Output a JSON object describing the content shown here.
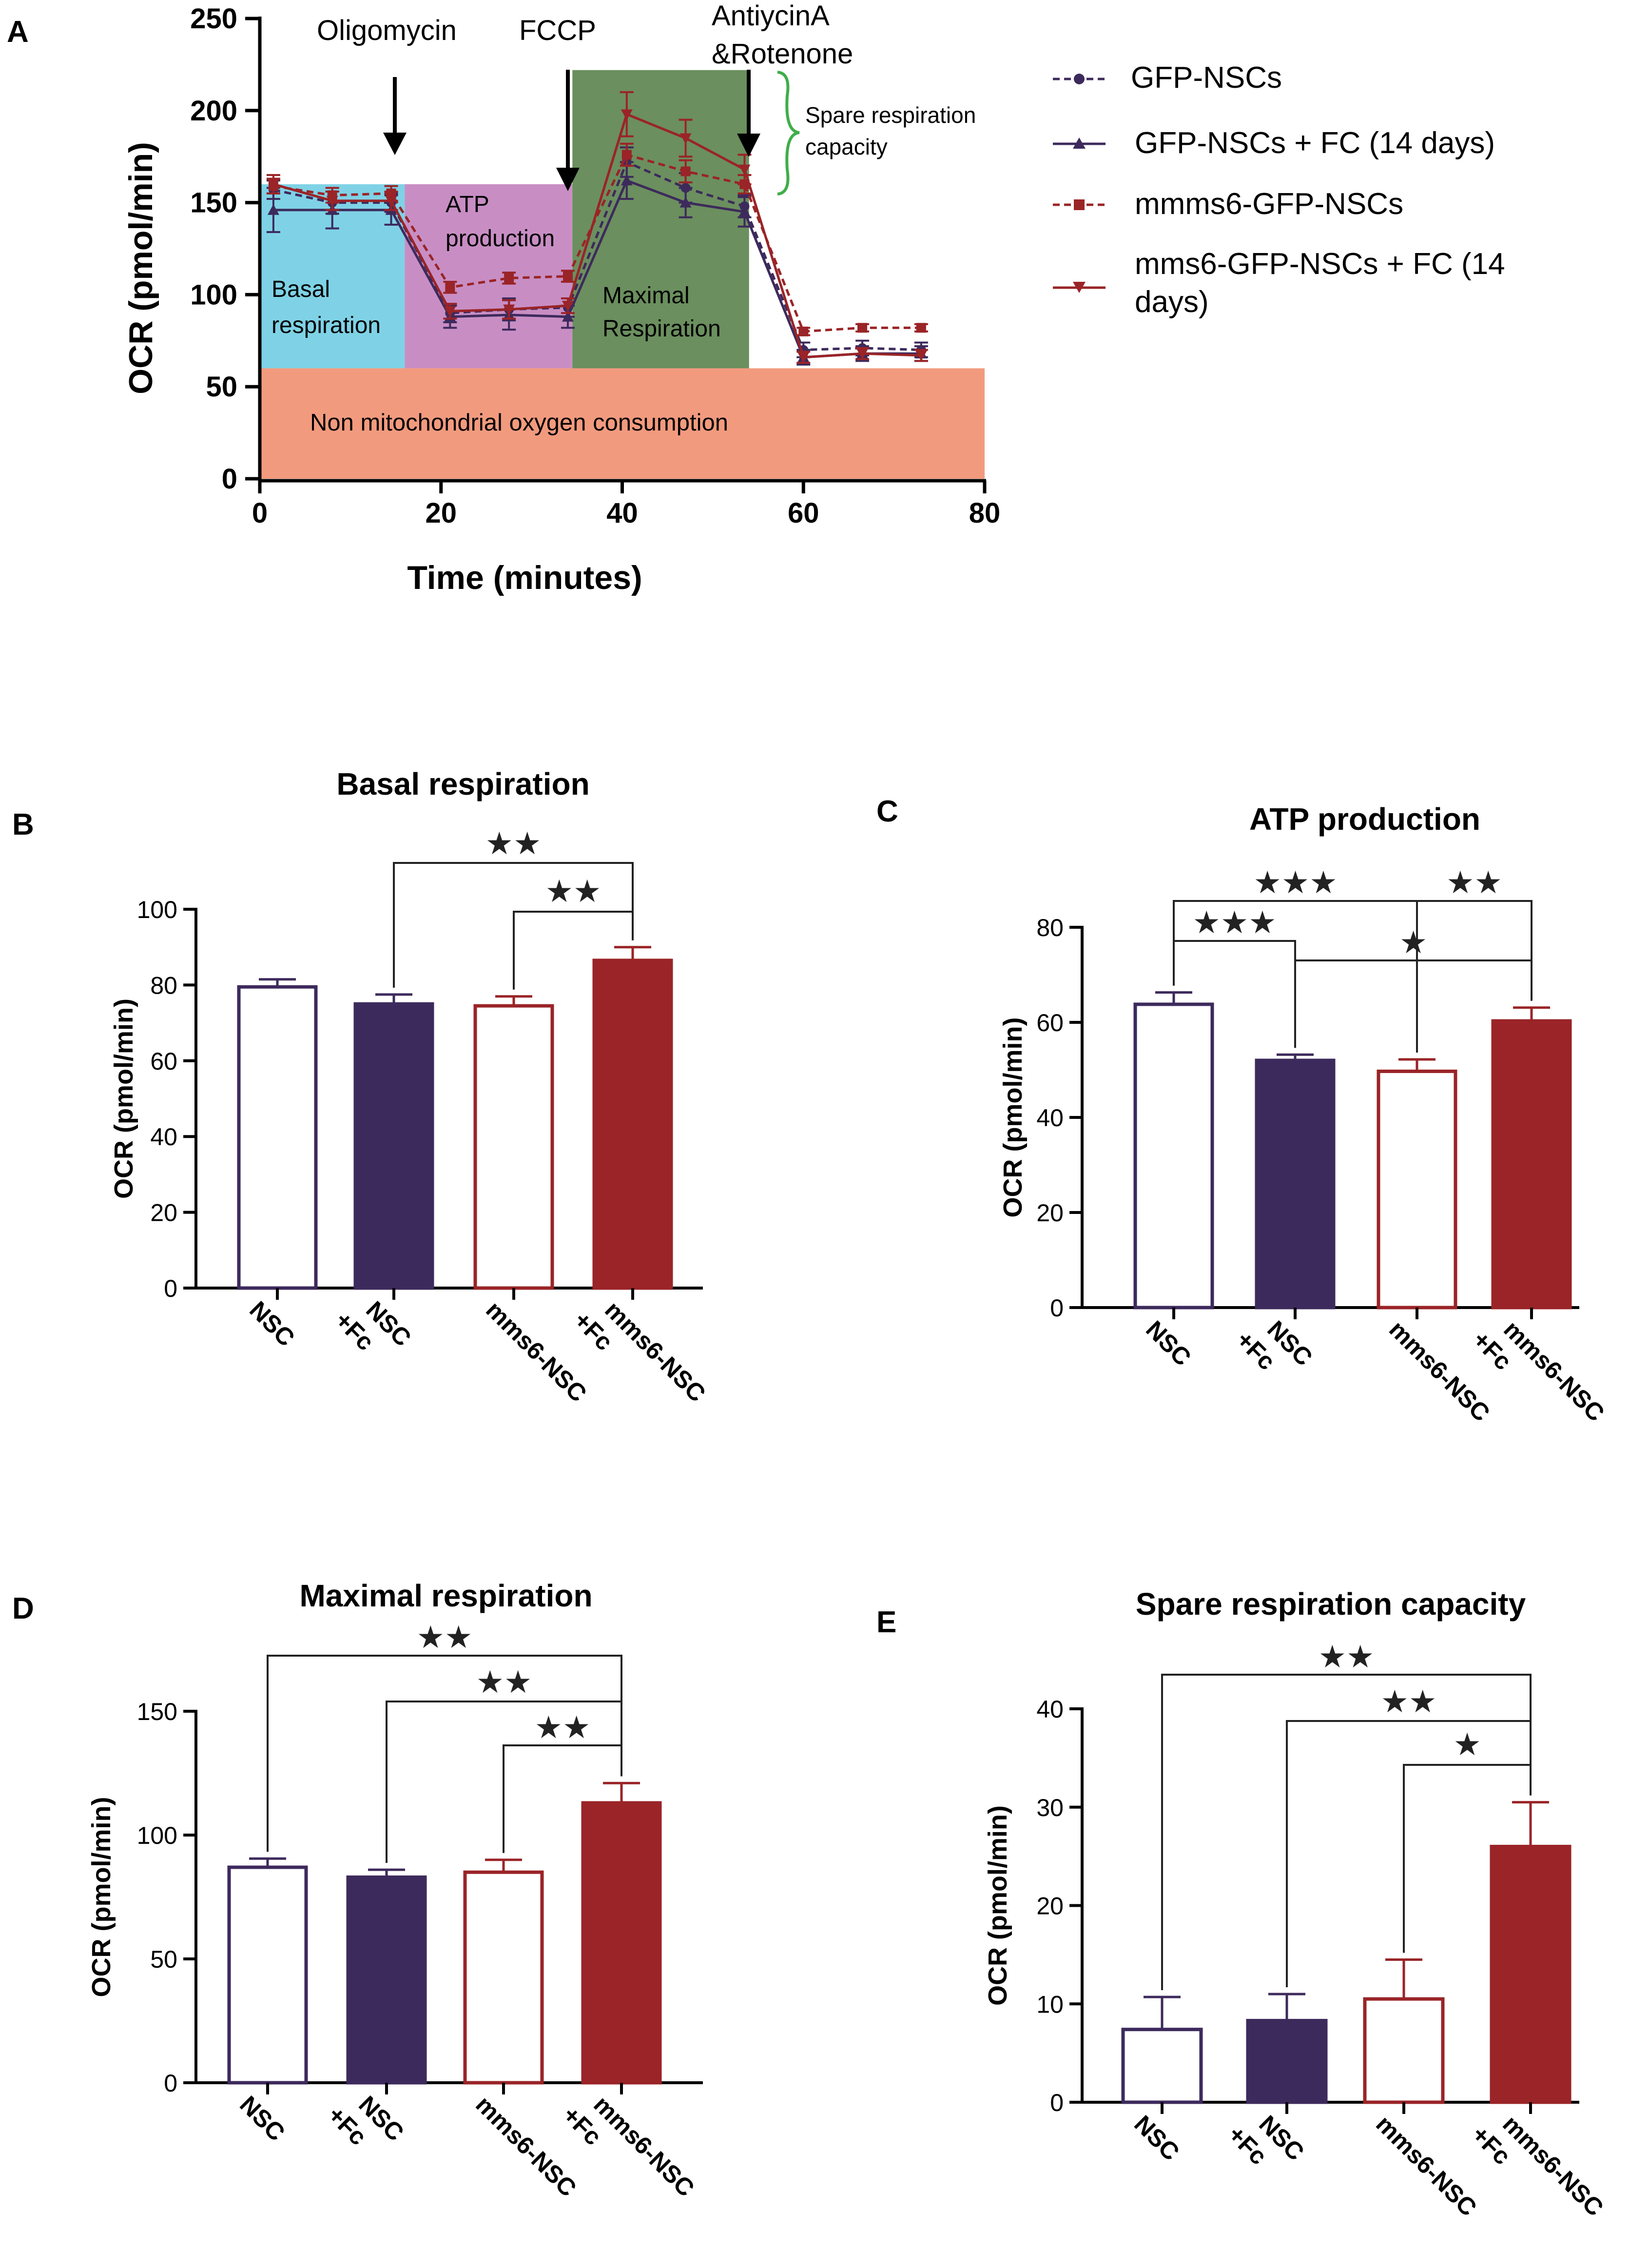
{
  "colors": {
    "gfp": "#3d2a5c",
    "mms6": "#9a2427",
    "basal_bg": "#7fd2e6",
    "atp_bg": "#c88ec4",
    "max_bg": "#6b8f5e",
    "nonmito_bg": "#f29a7e",
    "brace": "#3fae49",
    "axis": "#000000"
  },
  "panels": {
    "A": {
      "letter": "A",
      "injections": {
        "oligomycin": "Oligomycin",
        "fccp": "FCCP",
        "antimycin_l1": "AntiycinA",
        "antimycin_l2": "&Rotenone"
      },
      "regions": {
        "basal_l1": "Basal",
        "basal_l2": "respiration",
        "atp_l1": "ATP",
        "atp_l2": "production",
        "max_l1": "Maximal",
        "max_l2": "Respiration",
        "nonmito": "Non mitochondrial oxygen consumption"
      },
      "spare_l1": "Spare respiration",
      "spare_l2": "capacity",
      "legend": {
        "gfp": "GFP-NSCs",
        "gfp_fc": "GFP-NSCs + FC (14 days)",
        "mms6": "mmms6-GFP-NSCs",
        "mms6_fc_l1": "mms6-GFP-NSCs + FC (14",
        "mms6_fc_l2": "days)"
      }
    },
    "B": {
      "letter": "B"
    },
    "C": {
      "letter": "C"
    },
    "D": {
      "letter": "D"
    },
    "E": {
      "letter": "E"
    }
  },
  "chart_data": [
    {
      "panel": "A",
      "type": "line",
      "title": "",
      "xlabel": "Time (minutes)",
      "ylabel": "OCR (pmol/min)",
      "xlim": [
        0,
        80
      ],
      "ylim": [
        0,
        250
      ],
      "xticks": [
        0,
        20,
        40,
        60,
        80
      ],
      "yticks": [
        0,
        50,
        100,
        150,
        200,
        250
      ],
      "x": [
        1.5,
        8,
        14.5,
        21,
        27.5,
        34,
        40.5,
        47,
        53.5,
        60,
        66.5,
        73
      ],
      "series": [
        {
          "name": "GFP-NSCs",
          "style": "dashed",
          "marker": "circle",
          "color": "#3d2a5c",
          "values": [
            157,
            150,
            150,
            90,
            92,
            93,
            172,
            158,
            148,
            70,
            71,
            70
          ],
          "errors": [
            5,
            6,
            5,
            5,
            6,
            5,
            8,
            8,
            6,
            4,
            4,
            4
          ]
        },
        {
          "name": "GFP-NSCs + FC (14 days)",
          "style": "solid",
          "marker": "triangle",
          "color": "#3d2a5c",
          "values": [
            146,
            146,
            146,
            88,
            89,
            88,
            162,
            150,
            145,
            66,
            68,
            68
          ],
          "errors": [
            12,
            10,
            8,
            6,
            8,
            6,
            10,
            8,
            8,
            4,
            4,
            4
          ]
        },
        {
          "name": "mmms6-GFP-NSCs",
          "style": "dashed",
          "marker": "square",
          "color": "#9a2427",
          "values": [
            159,
            154,
            155,
            104,
            109,
            110,
            176,
            167,
            160,
            80,
            82,
            82
          ],
          "errors": [
            4,
            4,
            4,
            3,
            3,
            3,
            6,
            6,
            5,
            2,
            2,
            2
          ]
        },
        {
          "name": "mms6-GFP-NSCs + FC (14 days)",
          "style": "solid",
          "marker": "triangle-down",
          "color": "#9a2427",
          "values": [
            160,
            151,
            151,
            91,
            92,
            94,
            198,
            185,
            168,
            66,
            68,
            67
          ],
          "errors": [
            5,
            5,
            5,
            4,
            5,
            4,
            12,
            10,
            8,
            3,
            3,
            3
          ]
        }
      ],
      "phases": [
        {
          "name": "Basal respiration",
          "x": [
            0,
            16
          ],
          "y": [
            60,
            160
          ]
        },
        {
          "name": "ATP production",
          "x": [
            16,
            34.5
          ],
          "y": [
            60,
            160
          ]
        },
        {
          "name": "Maximal Respiration",
          "x": [
            34.5,
            54
          ],
          "y": [
            60,
            222
          ]
        },
        {
          "name": "Non mitochondrial oxygen consumption",
          "x": [
            0,
            80
          ],
          "y": [
            0,
            60
          ]
        }
      ],
      "injection_times": {
        "Oligomycin": 15,
        "FCCP": 34.5,
        "AntiycinA &Rotenone": 54
      }
    },
    {
      "panel": "B",
      "type": "bar",
      "title": "Basal respiration",
      "xlabel": "",
      "ylabel": "OCR (pmol/min)",
      "ylim": [
        0,
        100
      ],
      "yticks": [
        0,
        20,
        40,
        60,
        80,
        100
      ],
      "categories": [
        "NSC",
        "NSC +Fc",
        "mms6-NSC",
        "mms6-NSC +Fc"
      ],
      "values": [
        79.5,
        75,
        74.5,
        86.5
      ],
      "errors": [
        2,
        2.5,
        2.5,
        3.5
      ],
      "significance": [
        {
          "from": 1,
          "to": 3,
          "label": "★★"
        },
        {
          "from": 2,
          "to": 3,
          "label": "★★"
        }
      ]
    },
    {
      "panel": "C",
      "type": "bar",
      "title": "ATP production",
      "xlabel": "",
      "ylabel": "OCR (pmol/min)",
      "ylim": [
        0,
        80
      ],
      "yticks": [
        0,
        20,
        40,
        60,
        80
      ],
      "categories": [
        "NSC",
        "NSC +Fc",
        "mms6-NSC",
        "mms6-NSC +Fc"
      ],
      "values": [
        63.8,
        52,
        49.7,
        60.3
      ],
      "errors": [
        2.5,
        1.2,
        2.5,
        2.8
      ],
      "significance": [
        {
          "from": 0,
          "to": 2,
          "label": "★★★"
        },
        {
          "from": 0,
          "to": 1,
          "label": "★★★"
        },
        {
          "from": 1,
          "to": 3,
          "label": "★"
        },
        {
          "from": 2,
          "to": 3,
          "label": "★★"
        }
      ]
    },
    {
      "panel": "D",
      "type": "bar",
      "title": "Maximal respiration",
      "xlabel": "",
      "ylabel": "OCR (pmol/min)",
      "ylim": [
        0,
        150
      ],
      "yticks": [
        0,
        50,
        100,
        150
      ],
      "categories": [
        "NSC",
        "NSC +Fc",
        "mms6-NSC",
        "mms6-NSC +Fc"
      ],
      "values": [
        87,
        83,
        85,
        113
      ],
      "errors": [
        3.5,
        3,
        5,
        8
      ],
      "significance": [
        {
          "from": 0,
          "to": 3,
          "label": "★★"
        },
        {
          "from": 1,
          "to": 3,
          "label": "★★"
        },
        {
          "from": 2,
          "to": 3,
          "label": "★★"
        }
      ]
    },
    {
      "panel": "E",
      "type": "bar",
      "title": "Spare respiration capacity",
      "xlabel": "",
      "ylabel": "OCR (pmol/min)",
      "ylim": [
        0,
        40
      ],
      "yticks": [
        0,
        10,
        20,
        30,
        40
      ],
      "categories": [
        "NSC",
        "NSC +Fc",
        "mms6-NSC",
        "mms6-NSC +Fc"
      ],
      "values": [
        7.4,
        8.3,
        10.5,
        26
      ],
      "errors": [
        3.3,
        2.7,
        4,
        4.5
      ],
      "significance": [
        {
          "from": 0,
          "to": 3,
          "label": "★★"
        },
        {
          "from": 1,
          "to": 3,
          "label": "★★"
        },
        {
          "from": 2,
          "to": 3,
          "label": "★"
        }
      ]
    }
  ]
}
